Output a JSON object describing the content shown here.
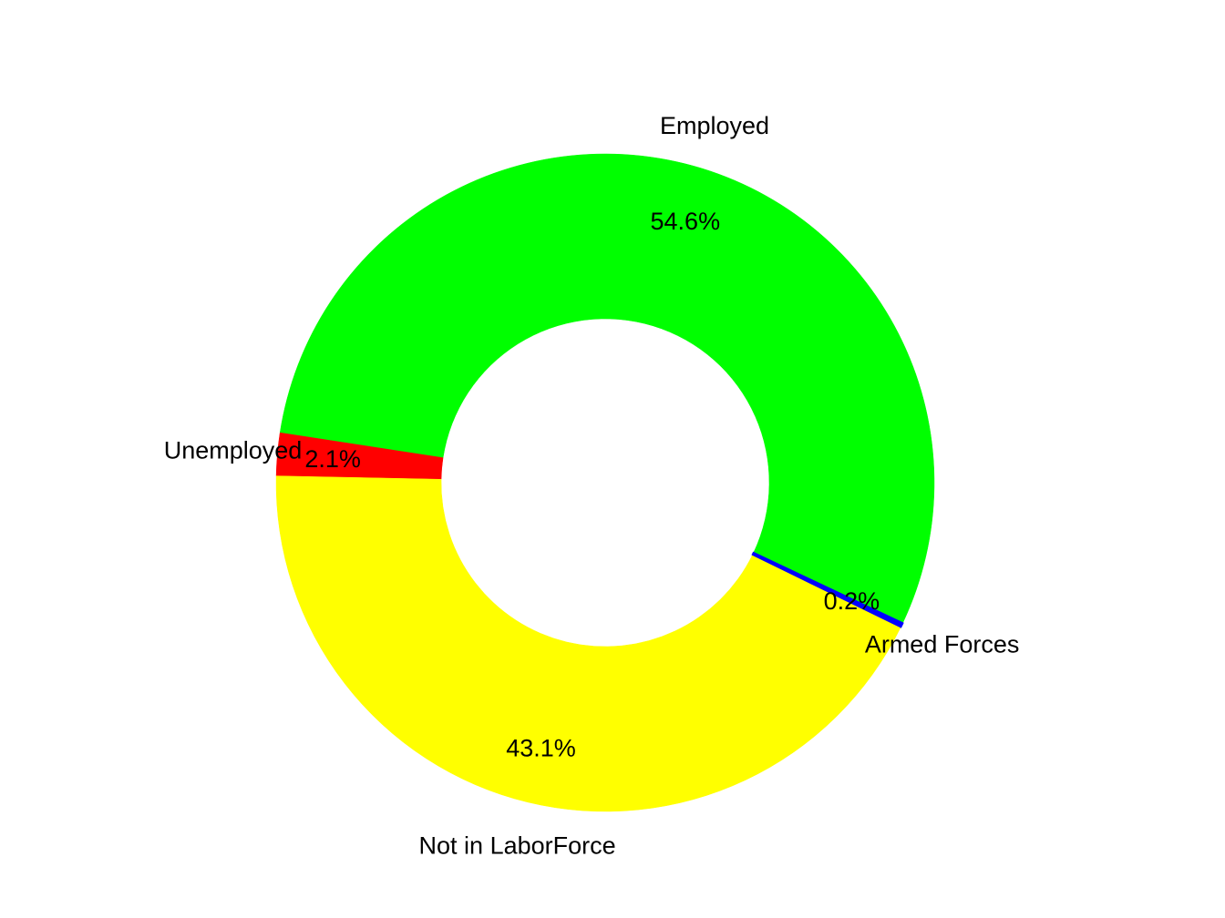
{
  "chart_data": {
    "type": "pie",
    "donut": true,
    "start": "bottom-right, counter-clockwise",
    "slices": [
      {
        "label": "Employed",
        "pct_label": "54.6%",
        "value": 54.6,
        "color": "#00ff00"
      },
      {
        "label": "Unemployed",
        "pct_label": "2.1%",
        "value": 2.1,
        "color": "#ff0000"
      },
      {
        "label": "Not in LaborForce",
        "pct_label": "43.1%",
        "value": 43.1,
        "color": "#ffff00"
      },
      {
        "label": "Armed Forces",
        "pct_label": "0.2%",
        "value": 0.2,
        "color": "#0000ff"
      }
    ]
  }
}
